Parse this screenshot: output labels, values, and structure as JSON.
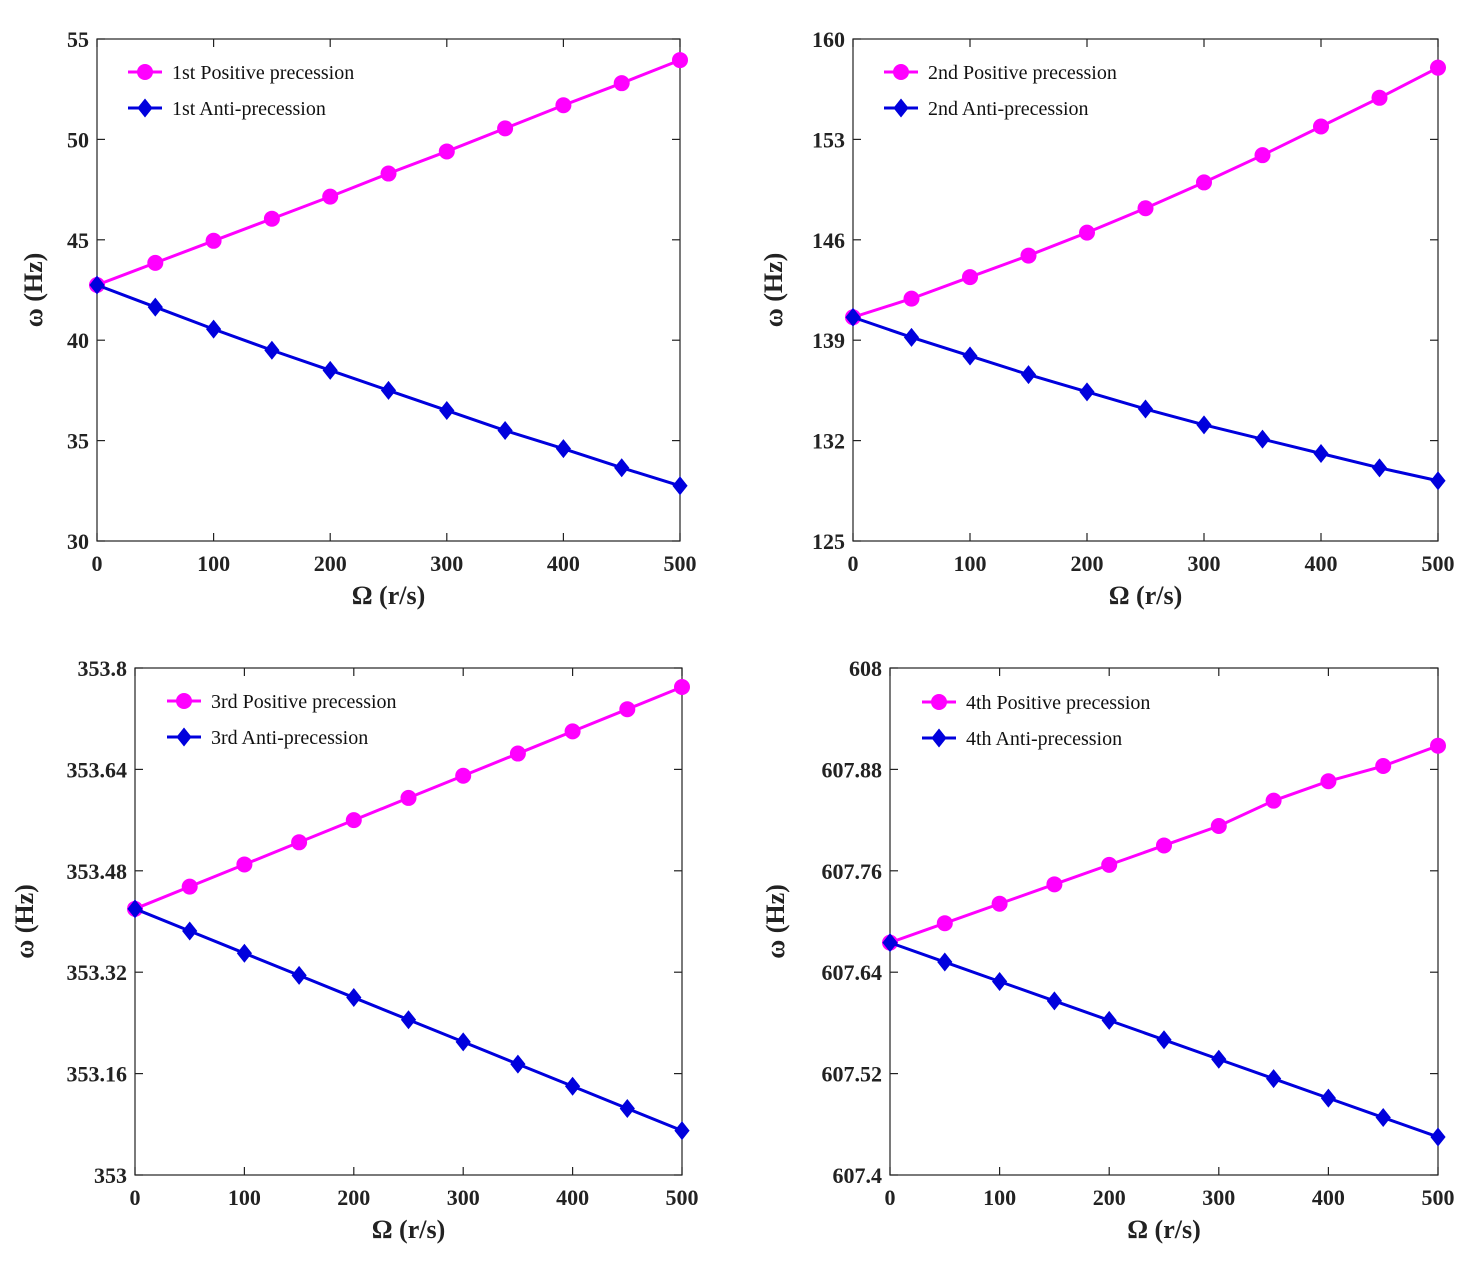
{
  "figure": {
    "colors": {
      "positive": "#ff00ff",
      "anti": "#0000dd",
      "axis": "#222222"
    }
  },
  "chart_data": [
    {
      "type": "line",
      "xlabel": "Ω (r/s)",
      "ylabel": "ω (Hz)",
      "xlim": [
        0,
        500
      ],
      "ylim": [
        30,
        55
      ],
      "xticks": [
        0,
        100,
        200,
        300,
        400,
        500
      ],
      "xtick_labels": [
        "0",
        "100",
        "200",
        "300",
        "400",
        "500"
      ],
      "yticks": [
        30,
        35,
        40,
        45,
        50,
        55
      ],
      "ytick_labels": [
        "30",
        "35",
        "40",
        "45",
        "50",
        "55"
      ],
      "legend_position": "top-left",
      "x": [
        0,
        50,
        100,
        150,
        200,
        250,
        300,
        350,
        400,
        450,
        500
      ],
      "series": [
        {
          "name": "1st Positive precession",
          "marker": "circle",
          "color": "#ff00ff",
          "values": [
            42.75,
            43.85,
            44.95,
            46.05,
            47.15,
            48.3,
            49.4,
            50.55,
            51.7,
            52.8,
            53.95
          ]
        },
        {
          "name": "1st Anti-precession",
          "marker": "diamond",
          "color": "#0000dd",
          "values": [
            42.75,
            41.65,
            40.55,
            39.5,
            38.5,
            37.5,
            36.5,
            35.5,
            34.6,
            33.65,
            32.75
          ]
        }
      ]
    },
    {
      "type": "line",
      "xlabel": "Ω (r/s)",
      "ylabel": "ω (Hz)",
      "xlim": [
        0,
        500
      ],
      "ylim": [
        125,
        160
      ],
      "xticks": [
        0,
        100,
        200,
        300,
        400,
        500
      ],
      "xtick_labels": [
        "0",
        "100",
        "200",
        "300",
        "400",
        "500"
      ],
      "yticks": [
        125,
        132,
        139,
        146,
        153,
        160
      ],
      "ytick_labels": [
        "125",
        "132",
        "139",
        "146",
        "153",
        "160"
      ],
      "legend_position": "top-left",
      "x": [
        0,
        50,
        100,
        150,
        200,
        250,
        300,
        350,
        400,
        450,
        500
      ],
      "series": [
        {
          "name": "2nd Positive precession",
          "marker": "circle",
          "color": "#ff00ff",
          "values": [
            140.6,
            141.9,
            143.4,
            144.9,
            146.5,
            148.2,
            150.0,
            151.9,
            153.9,
            155.9,
            158.0
          ]
        },
        {
          "name": "2nd Anti-precession",
          "marker": "diamond",
          "color": "#0000dd",
          "values": [
            140.6,
            139.2,
            137.9,
            136.6,
            135.4,
            134.2,
            133.1,
            132.1,
            131.1,
            130.1,
            129.2
          ]
        }
      ]
    },
    {
      "type": "line",
      "xlabel": "Ω (r/s)",
      "ylabel": "ω (Hz)",
      "xlim": [
        0,
        500
      ],
      "ylim": [
        353,
        353.8
      ],
      "xticks": [
        0,
        100,
        200,
        300,
        400,
        500
      ],
      "xtick_labels": [
        "0",
        "100",
        "200",
        "300",
        "400",
        "500"
      ],
      "yticks": [
        353,
        353.16,
        353.32,
        353.48,
        353.64,
        353.8
      ],
      "ytick_labels": [
        "353",
        "353.16",
        "353.32",
        "353.48",
        "353.64",
        "353.8"
      ],
      "legend_position": "top-left",
      "x": [
        0,
        50,
        100,
        150,
        200,
        250,
        300,
        350,
        400,
        450,
        500
      ],
      "series": [
        {
          "name": "3rd Positive precession",
          "marker": "circle",
          "color": "#ff00ff",
          "values": [
            353.42,
            353.455,
            353.49,
            353.525,
            353.56,
            353.595,
            353.63,
            353.665,
            353.7,
            353.735,
            353.77
          ]
        },
        {
          "name": "3rd Anti-precession",
          "marker": "diamond",
          "color": "#0000dd",
          "values": [
            353.42,
            353.385,
            353.35,
            353.315,
            353.28,
            353.245,
            353.21,
            353.175,
            353.14,
            353.105,
            353.07
          ]
        }
      ]
    },
    {
      "type": "line",
      "xlabel": "Ω (r/s)",
      "ylabel": "ω (Hz)",
      "xlim": [
        0,
        500
      ],
      "ylim": [
        607.4,
        608
      ],
      "xticks": [
        0,
        100,
        200,
        300,
        400,
        500
      ],
      "xtick_labels": [
        "0",
        "100",
        "200",
        "300",
        "400",
        "500"
      ],
      "yticks": [
        607.4,
        607.52,
        607.64,
        607.76,
        607.88,
        608
      ],
      "ytick_labels": [
        "607.4",
        "607.52",
        "607.64",
        "607.76",
        "607.88",
        "608"
      ],
      "legend_position": "top-left",
      "x": [
        0,
        50,
        100,
        150,
        200,
        250,
        300,
        350,
        400,
        450,
        500
      ],
      "series": [
        {
          "name": "4th Positive precession",
          "marker": "circle",
          "color": "#ff00ff",
          "values": [
            607.675,
            607.698,
            607.721,
            607.744,
            607.767,
            607.79,
            607.813,
            607.843,
            607.866,
            607.884,
            607.908
          ]
        },
        {
          "name": "4th Anti-precession",
          "marker": "diamond",
          "color": "#0000dd",
          "values": [
            607.675,
            607.652,
            607.629,
            607.606,
            607.583,
            607.56,
            607.537,
            607.514,
            607.491,
            607.468,
            607.445
          ]
        }
      ]
    }
  ]
}
